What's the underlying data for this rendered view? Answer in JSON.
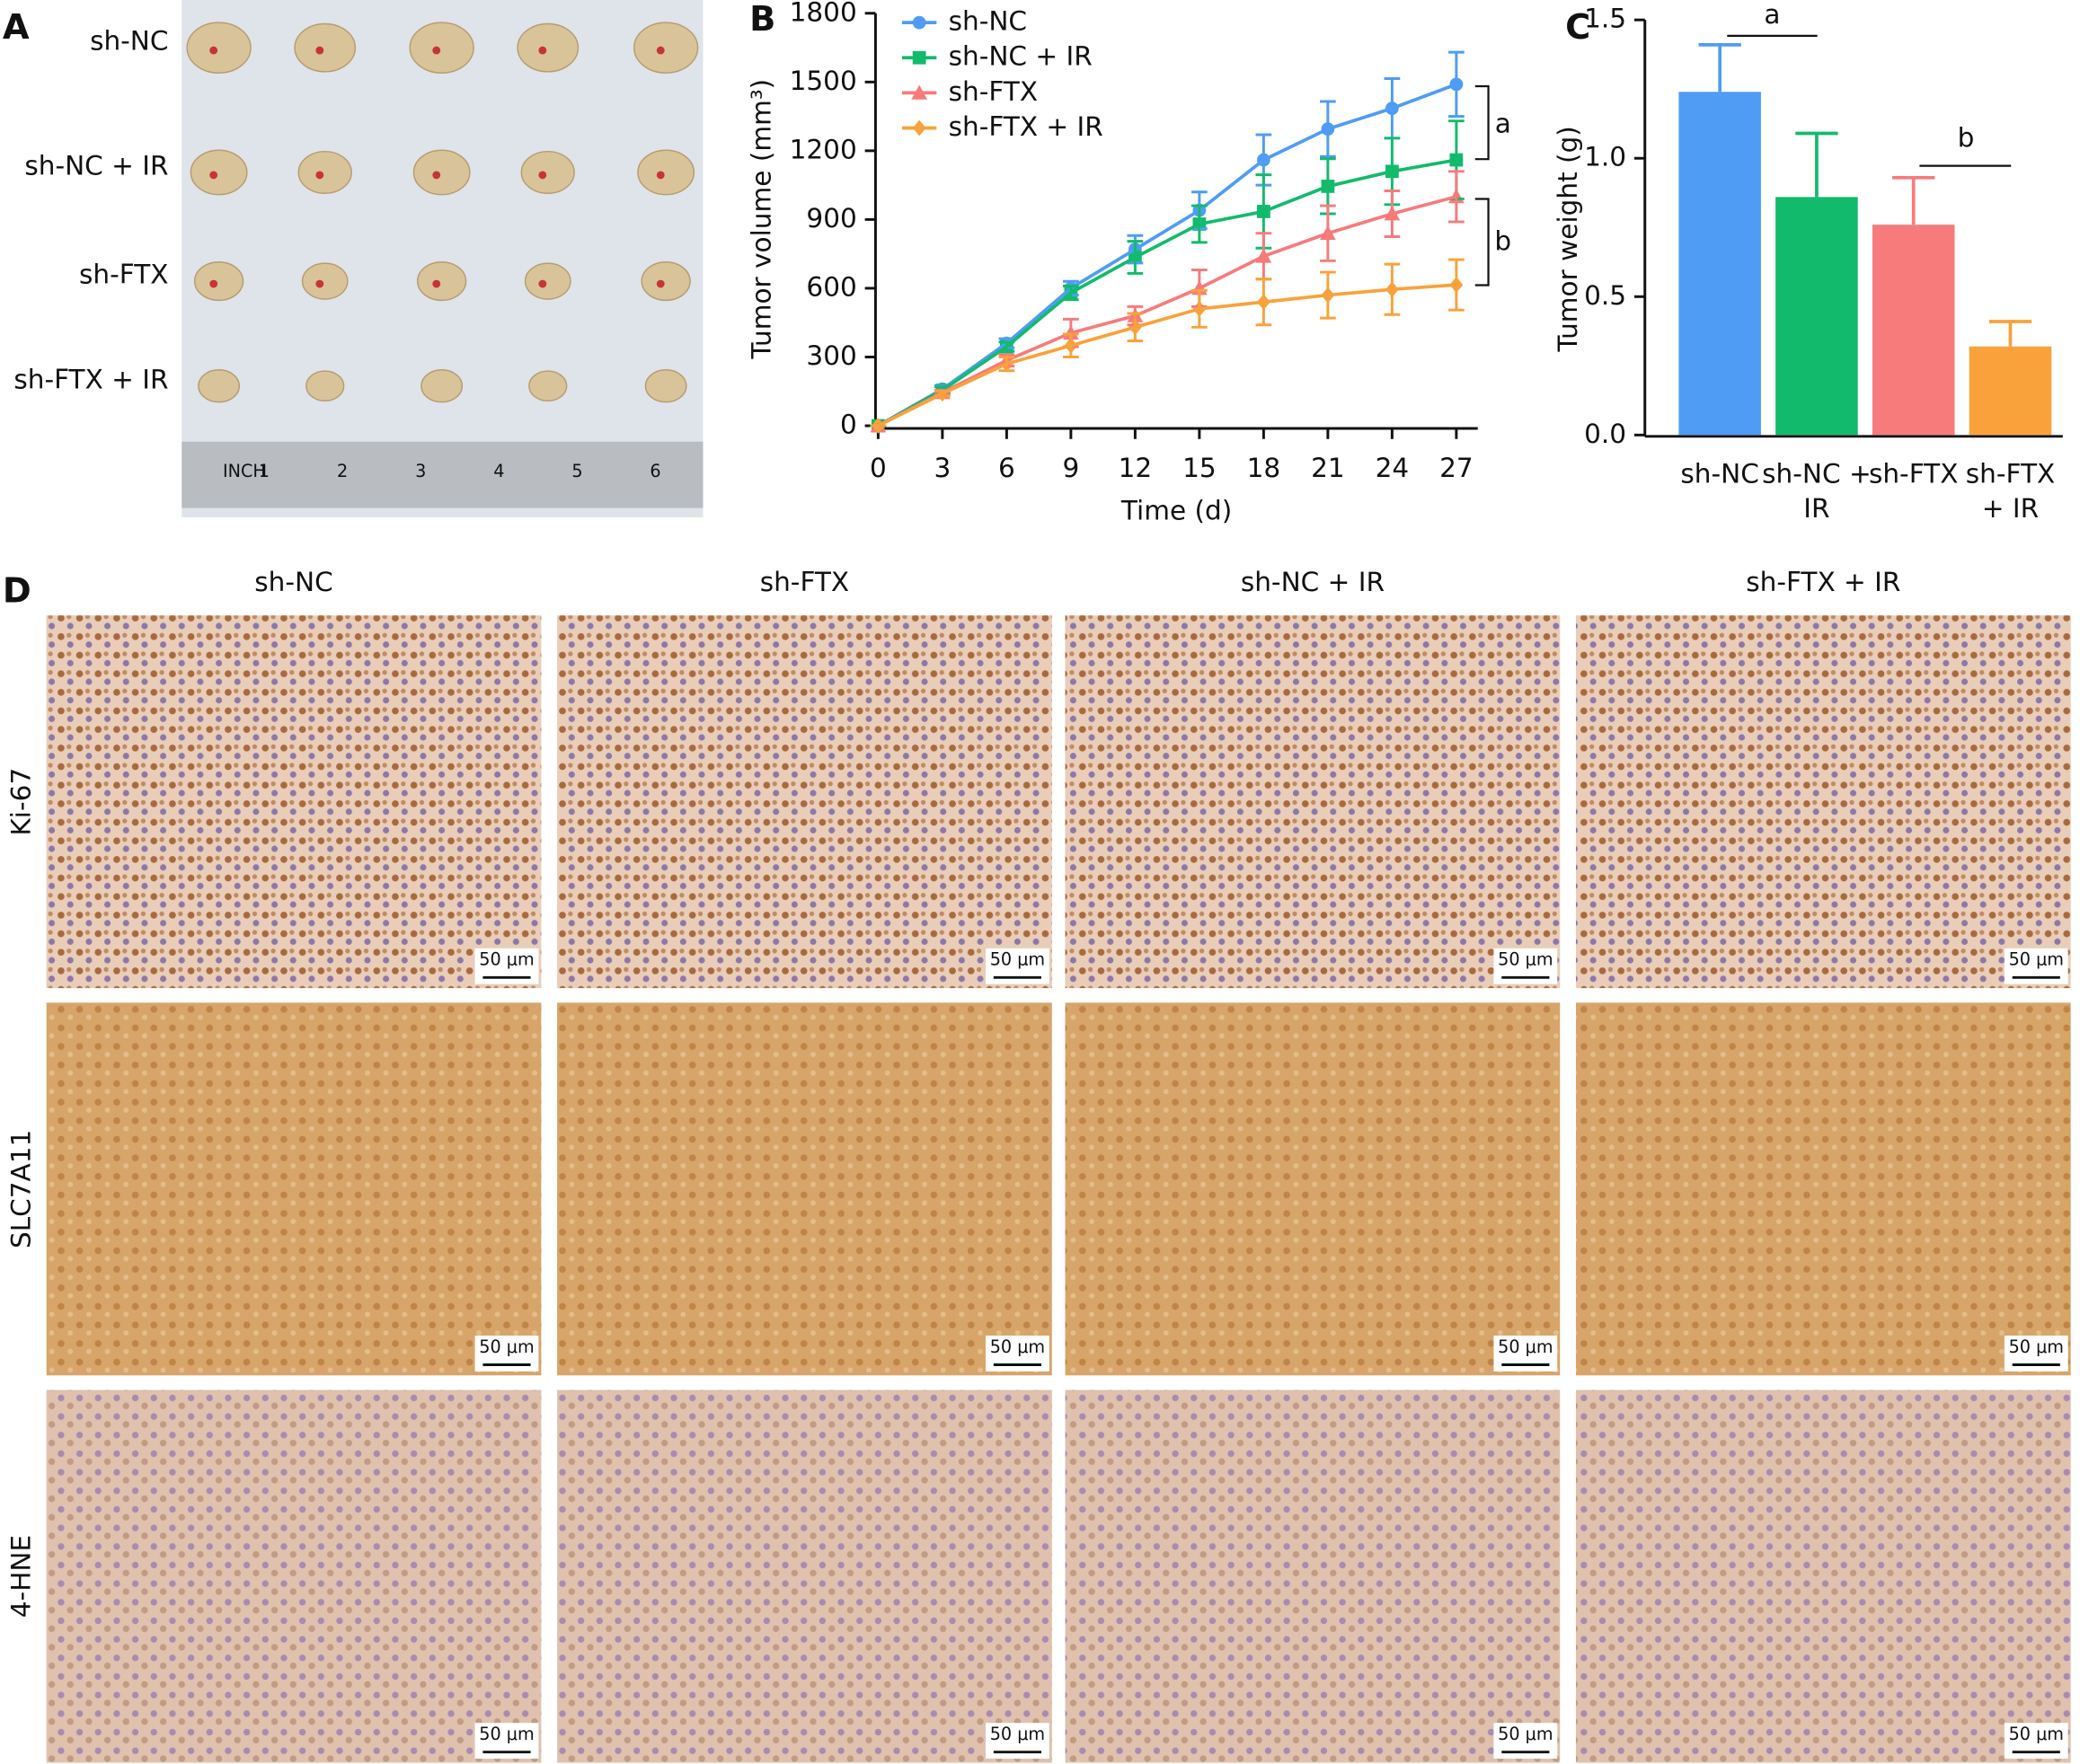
{
  "panel_labels": [
    "A",
    "B",
    "C",
    "D"
  ],
  "tumor_photo": {
    "row_labels": [
      "sh-NC",
      "sh-NC + IR",
      "sh-FTX",
      "sh-FTX + IR"
    ],
    "ruler_labels": [
      "INCH",
      "1",
      "2",
      "3",
      "4",
      "5",
      "6"
    ]
  },
  "chart_data": [
    {
      "type": "line",
      "x_label": "Time (d)",
      "y_label": "Tumor volume (mm³)",
      "x": [
        0,
        3,
        6,
        9,
        12,
        15,
        18,
        21,
        24,
        27
      ],
      "xlim": [
        0,
        28
      ],
      "xticks": [
        0,
        3,
        6,
        9,
        12,
        15,
        18,
        21,
        24,
        27
      ],
      "ylim": [
        0,
        1800
      ],
      "yticks": [
        0,
        300,
        600,
        900,
        1200,
        1500,
        1800
      ],
      "legend": "upper left",
      "annotations": [
        "a",
        "b"
      ],
      "series": [
        {
          "name": "sh-NC",
          "color": "#4f9cf5",
          "marker": "circle",
          "values": [
            0,
            160,
            360,
            600,
            770,
            940,
            1160,
            1295,
            1385,
            1490
          ],
          "errors": [
            0,
            15,
            20,
            30,
            60,
            80,
            110,
            120,
            130,
            140
          ]
        },
        {
          "name": "sh-NC + IR",
          "color": "#12bb6c",
          "marker": "square",
          "values": [
            0,
            155,
            345,
            580,
            735,
            880,
            935,
            1045,
            1110,
            1160
          ],
          "errors": [
            0,
            15,
            20,
            30,
            70,
            80,
            160,
            120,
            145,
            170
          ]
        },
        {
          "name": "sh-FTX",
          "color": "#f77b7b",
          "marker": "triangle",
          "values": [
            0,
            145,
            285,
            405,
            480,
            600,
            740,
            840,
            925,
            1000
          ],
          "errors": [
            0,
            10,
            25,
            60,
            40,
            80,
            100,
            120,
            100,
            110
          ]
        },
        {
          "name": "sh-FTX + IR",
          "color": "#f9a23b",
          "marker": "diamond",
          "values": [
            0,
            140,
            270,
            350,
            430,
            510,
            540,
            570,
            595,
            615
          ],
          "errors": [
            0,
            10,
            30,
            50,
            60,
            80,
            100,
            100,
            110,
            110
          ]
        }
      ]
    },
    {
      "type": "bar",
      "y_label": "Tumor weight (g)",
      "categories": [
        "sh-NC",
        "sh-NC + IR",
        "sh-FTX",
        "sh-FTX + IR"
      ],
      "values": [
        1.24,
        0.86,
        0.76,
        0.32
      ],
      "errors": [
        0.17,
        0.23,
        0.17,
        0.09
      ],
      "colors": [
        "#4f9cf5",
        "#12bb6c",
        "#f77b7b",
        "#f9a23b"
      ],
      "ylim": [
        0,
        1.5
      ],
      "yticks": [
        {
          "value": 0,
          "label": "0.0"
        },
        0.5,
        {
          "value": 1,
          "label": "1.0"
        },
        1.5
      ],
      "annotations": [
        "a",
        "b"
      ]
    }
  ],
  "ihc": {
    "columns": [
      "sh-NC",
      "sh-FTX",
      "sh-NC + IR",
      "sh-FTX + IR"
    ],
    "rows": [
      "Ki-67",
      "SLC7A11",
      "4-HNE"
    ],
    "scale_bar": "50 μm"
  }
}
